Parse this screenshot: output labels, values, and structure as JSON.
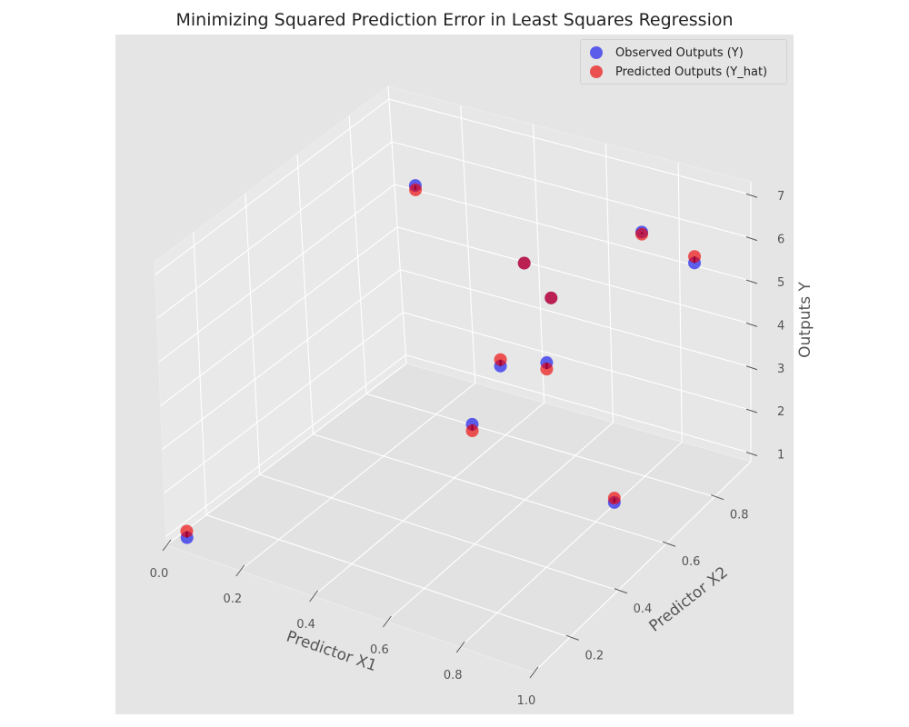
{
  "chart_data": {
    "type": "scatter",
    "title": "Minimizing Squared Prediction Error in Least Squares Regression",
    "xlabel": "Predictor X1",
    "ylabel": "Predictor X2",
    "zlabel": "Outputs Y",
    "xticks": [
      "0.0",
      "0.2",
      "0.4",
      "0.6",
      "0.8",
      "1.0"
    ],
    "yticks": [
      "0.2",
      "0.4",
      "0.6",
      "0.8"
    ],
    "zticks": [
      "1",
      "2",
      "3",
      "4",
      "5",
      "6",
      "7"
    ],
    "xlim": [
      0.0,
      1.0
    ],
    "ylim": [
      0.05,
      0.95
    ],
    "zlim": [
      0.8,
      7.3
    ],
    "legend_position": "top-right",
    "grid": true,
    "x": [
      0.02,
      0.21,
      0.72,
      0.57,
      0.81,
      0.98,
      0.44,
      0.61,
      0.72,
      0.94
    ],
    "y": [
      0.1,
      0.75,
      0.52,
      0.76,
      0.78,
      0.74,
      0.84,
      0.38,
      0.33,
      0.47
    ],
    "series": [
      {
        "name": "Observed Outputs (Y)",
        "color": "#0000ee",
        "values": [
          0.8,
          6.4,
          4.7,
          4.6,
          6.6,
          6.5,
          4.7,
          3.7,
          5.6,
          2.3
        ]
      },
      {
        "name": "Predicted Outputs (Y_hat)",
        "color": "#ee0000",
        "values": [
          0.95,
          6.3,
          4.55,
          4.6,
          6.55,
          6.65,
          4.7,
          3.55,
          5.75,
          2.4
        ]
      }
    ],
    "residual_color": "#000000"
  }
}
